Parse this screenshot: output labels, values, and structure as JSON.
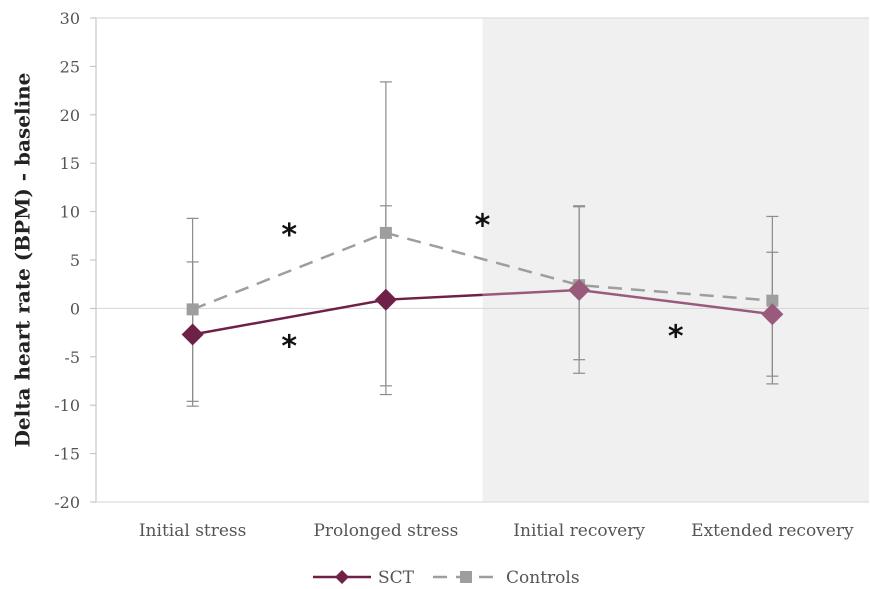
{
  "chart_data": {
    "type": "line",
    "title": "",
    "xlabel": "",
    "ylabel": "Delta heart rate (BPM) - baseline",
    "ylim": [
      -20,
      30
    ],
    "y_ticks": [
      "30",
      "25",
      "20",
      "15",
      "10",
      "5",
      "0",
      "-5",
      "-10",
      "-15",
      "-20"
    ],
    "categories": [
      "Initial stress",
      "Prolonged stress",
      "Initial recovery",
      "Extended recovery"
    ],
    "shaded_region": {
      "from_category": "Initial recovery",
      "to_category": "Extended recovery",
      "color": "#f0f0f0"
    },
    "series": [
      {
        "name": "SCT",
        "color": "#6e2046",
        "shaded_color": "#9a5a7c",
        "marker": "diamond",
        "line_style": "solid",
        "values": [
          -2.7,
          0.9,
          1.9,
          -0.6
        ],
        "error_low": [
          -9.6,
          -8.0,
          -5.3,
          -7.0
        ],
        "error_high": [
          4.8,
          10.6,
          10.5,
          5.8
        ]
      },
      {
        "name": "Controls",
        "color": "#9e9e9e",
        "marker": "square",
        "line_style": "dashed",
        "values": [
          -0.1,
          7.8,
          2.4,
          0.8
        ],
        "error_low": [
          -10.1,
          -8.9,
          -6.7,
          -7.8
        ],
        "error_high": [
          9.3,
          23.4,
          10.6,
          9.5
        ]
      }
    ],
    "significance_markers": [
      {
        "label": "*",
        "between": [
          0,
          1
        ],
        "y": 8.0
      },
      {
        "label": "*",
        "between": [
          0,
          1
        ],
        "y": -3.5
      },
      {
        "label": "*",
        "between": [
          1,
          2
        ],
        "y": 9.0
      },
      {
        "label": "*",
        "between": [
          2,
          3
        ],
        "y": -2.5
      }
    ],
    "legend": {
      "position": "bottom",
      "entries": [
        "SCT",
        "Controls"
      ]
    }
  }
}
